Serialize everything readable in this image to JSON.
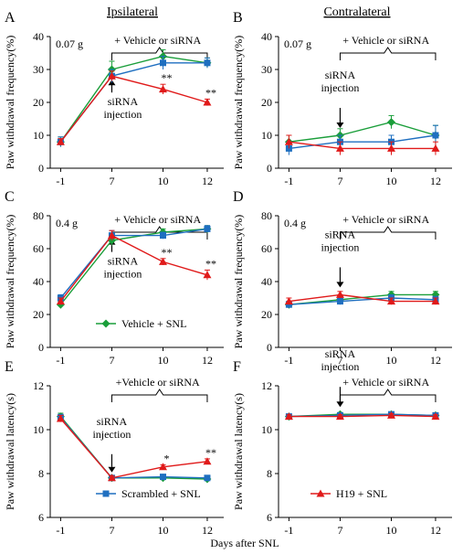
{
  "figure": {
    "columns": [
      "Ipsilateral",
      "Contralateral"
    ],
    "shared_xlabel": "Days after SNL"
  },
  "colors": {
    "vehicle": "#1a9e3a",
    "scrambled": "#1f6fc0",
    "h19": "#e01a1a"
  },
  "chart_data": [
    {
      "panel": "A",
      "type": "line",
      "ylabel": "Paw withdrawal frequency(%)",
      "ylim": [
        0,
        40
      ],
      "yticks": [
        0,
        10,
        20,
        30,
        40
      ],
      "x": [
        "-1",
        "7",
        "10",
        "12"
      ],
      "annotation": "0.07 g",
      "bracket_label": "+ Vehicle or siRNA",
      "arrow_label": [
        "siRNA",
        "injection"
      ],
      "series": [
        {
          "key": "vehicle",
          "values": [
            8,
            30,
            34,
            32
          ],
          "err": [
            1.5,
            2.5,
            2,
            1.5
          ]
        },
        {
          "key": "scrambled",
          "values": [
            8,
            28,
            32,
            32
          ],
          "err": [
            1.5,
            2,
            2,
            1.5
          ]
        },
        {
          "key": "h19",
          "values": [
            8,
            28,
            24,
            20
          ],
          "err": [
            1,
            1.5,
            1.5,
            1
          ]
        }
      ],
      "sig": [
        {
          "x": "10",
          "text": "**"
        },
        {
          "x": "12",
          "text": "**"
        }
      ]
    },
    {
      "panel": "B",
      "type": "line",
      "ylabel": "Paw withdrawal frequency(%)",
      "ylim": [
        0,
        40
      ],
      "yticks": [
        0,
        10,
        20,
        30,
        40
      ],
      "x": [
        "-1",
        "7",
        "10",
        "12"
      ],
      "annotation": "0.07 g",
      "bracket_label": "+ Vehicle or siRNA",
      "arrow_label": [
        "siRNA",
        "injection"
      ],
      "series": [
        {
          "key": "vehicle",
          "values": [
            8,
            10,
            14,
            10
          ],
          "err": [
            2,
            2,
            2,
            3
          ]
        },
        {
          "key": "scrambled",
          "values": [
            6,
            8,
            8,
            10
          ],
          "err": [
            2,
            2,
            2,
            3
          ]
        },
        {
          "key": "h19",
          "values": [
            8,
            6,
            6,
            6
          ],
          "err": [
            2,
            2,
            2,
            2
          ]
        }
      ],
      "sig": []
    },
    {
      "panel": "C",
      "type": "line",
      "ylabel": "Paw withdrawal frequency(%)",
      "ylim": [
        0,
        80
      ],
      "yticks": [
        0,
        20,
        40,
        60,
        80
      ],
      "x": [
        "-1",
        "7",
        "10",
        "12"
      ],
      "annotation": "0.4 g",
      "bracket_label": "+ Vehicle or siRNA",
      "arrow_label": [
        "siRNA",
        "injection"
      ],
      "series": [
        {
          "key": "vehicle",
          "values": [
            26,
            65,
            70,
            72
          ],
          "err": [
            2,
            3,
            2,
            2
          ]
        },
        {
          "key": "scrambled",
          "values": [
            30,
            68,
            68,
            72
          ],
          "err": [
            2,
            3,
            2,
            2
          ]
        },
        {
          "key": "h19",
          "values": [
            28,
            68,
            52,
            44
          ],
          "err": [
            2,
            3,
            2,
            3
          ]
        }
      ],
      "sig": [
        {
          "x": "10",
          "text": "**"
        },
        {
          "x": "12",
          "text": "**"
        }
      ],
      "legend": {
        "key": "vehicle",
        "label": "Vehicle + SNL"
      }
    },
    {
      "panel": "D",
      "type": "line",
      "ylabel": "Paw withdrawal frequency(%)",
      "ylim": [
        0,
        80
      ],
      "yticks": [
        0,
        20,
        40,
        60,
        80
      ],
      "x": [
        "-1",
        "7",
        "10",
        "12"
      ],
      "annotation": "0.4 g",
      "bracket_label": "+ Vehicle or siRNA",
      "arrow_label": [
        "siRNA",
        "injection"
      ],
      "series": [
        {
          "key": "vehicle",
          "values": [
            26,
            29,
            32,
            32
          ],
          "err": [
            2,
            2,
            2,
            2
          ]
        },
        {
          "key": "scrambled",
          "values": [
            26,
            28,
            30,
            29
          ],
          "err": [
            2,
            2,
            2,
            2
          ]
        },
        {
          "key": "h19",
          "values": [
            28,
            32,
            28,
            28
          ],
          "err": [
            2,
            2,
            2,
            2
          ]
        }
      ],
      "sig": []
    },
    {
      "panel": "E",
      "type": "line",
      "ylabel": "Paw withdrawal latency(s)",
      "ylim": [
        6,
        12
      ],
      "yticks": [
        6,
        8,
        10,
        12
      ],
      "x": [
        "-1",
        "7",
        "10",
        "12"
      ],
      "annotation": "",
      "bracket_label": "+Vehicle or siRNA",
      "arrow_label": [
        "siRNA",
        "injection"
      ],
      "series": [
        {
          "key": "vehicle",
          "values": [
            10.6,
            7.8,
            7.8,
            7.75
          ],
          "err": [
            0.15,
            0.1,
            0.1,
            0.1
          ]
        },
        {
          "key": "scrambled",
          "values": [
            10.55,
            7.8,
            7.85,
            7.8
          ],
          "err": [
            0.15,
            0.1,
            0.1,
            0.1
          ]
        },
        {
          "key": "h19",
          "values": [
            10.5,
            7.8,
            8.3,
            8.55
          ],
          "err": [
            0.15,
            0.1,
            0.1,
            0.12
          ]
        }
      ],
      "sig": [
        {
          "x": "10",
          "text": "*"
        },
        {
          "x": "12",
          "text": "**"
        }
      ],
      "legend": {
        "key": "scrambled",
        "label": "Scrambled + SNL"
      }
    },
    {
      "panel": "F",
      "type": "line",
      "ylabel": "Paw withdrawal latency(s)",
      "ylim": [
        6,
        12
      ],
      "yticks": [
        6,
        8,
        10,
        12
      ],
      "x": [
        "-1",
        "7",
        "10",
        "12"
      ],
      "annotation": "",
      "bracket_label": "+ Vehicle or siRNA",
      "arrow_label": [
        "siRNA",
        "injection"
      ],
      "series": [
        {
          "key": "vehicle",
          "values": [
            10.6,
            10.7,
            10.7,
            10.65
          ],
          "err": [
            0.08,
            0.08,
            0.08,
            0.08
          ]
        },
        {
          "key": "scrambled",
          "values": [
            10.6,
            10.65,
            10.7,
            10.65
          ],
          "err": [
            0.08,
            0.08,
            0.08,
            0.08
          ]
        },
        {
          "key": "h19",
          "values": [
            10.6,
            10.6,
            10.65,
            10.6
          ],
          "err": [
            0.08,
            0.08,
            0.08,
            0.08
          ]
        }
      ],
      "sig": [],
      "legend": {
        "key": "h19",
        "label": "H19 + SNL"
      }
    }
  ]
}
